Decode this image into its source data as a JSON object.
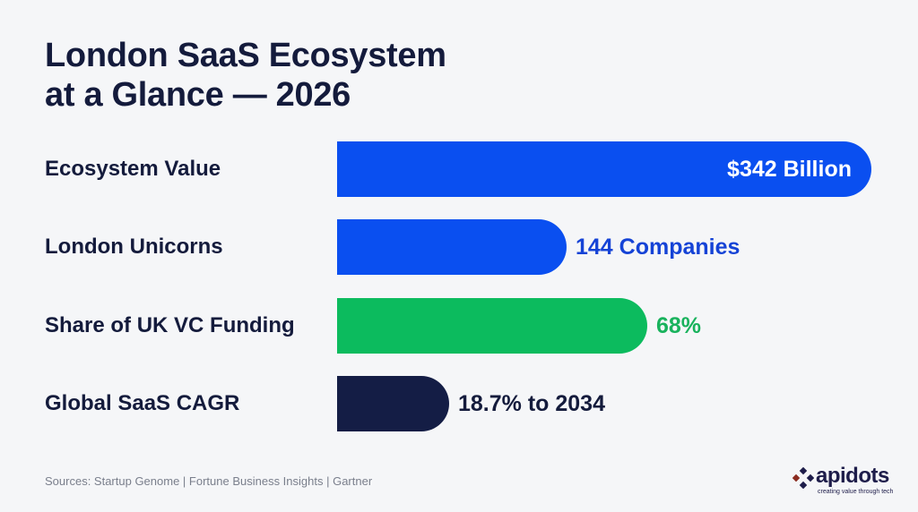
{
  "title_lines": [
    "London SaaS Ecosystem",
    "at a Glance — 2026"
  ],
  "chart_data": {
    "type": "bar",
    "orientation": "horizontal",
    "title": "London SaaS Ecosystem at a Glance — 2026",
    "categories": [
      "Ecosystem Value",
      "London Unicorns",
      "Share of UK VC Funding",
      "Global SaaS CAGR"
    ],
    "value_labels": [
      "$342 Billion",
      "144 Companies",
      "68%",
      "18.7% to 2034"
    ],
    "bar_fill": [
      1.0,
      0.43,
      0.58,
      0.21
    ],
    "colors": [
      "#0a4ff0",
      "#0a4ff0",
      "#0cbb5e",
      "#141d45"
    ],
    "label_colors": [
      "#ffffff",
      "#1543d6",
      "#18b25c",
      "#141b3c"
    ],
    "label_inside": [
      true,
      false,
      false,
      false
    ],
    "grid": false
  },
  "sources": "Sources: Startup Genome | Fortune Business Insights | Gartner",
  "logo": {
    "name": "apidots",
    "tagline": "creating value through tech",
    "accent": "#8a2a1f"
  }
}
